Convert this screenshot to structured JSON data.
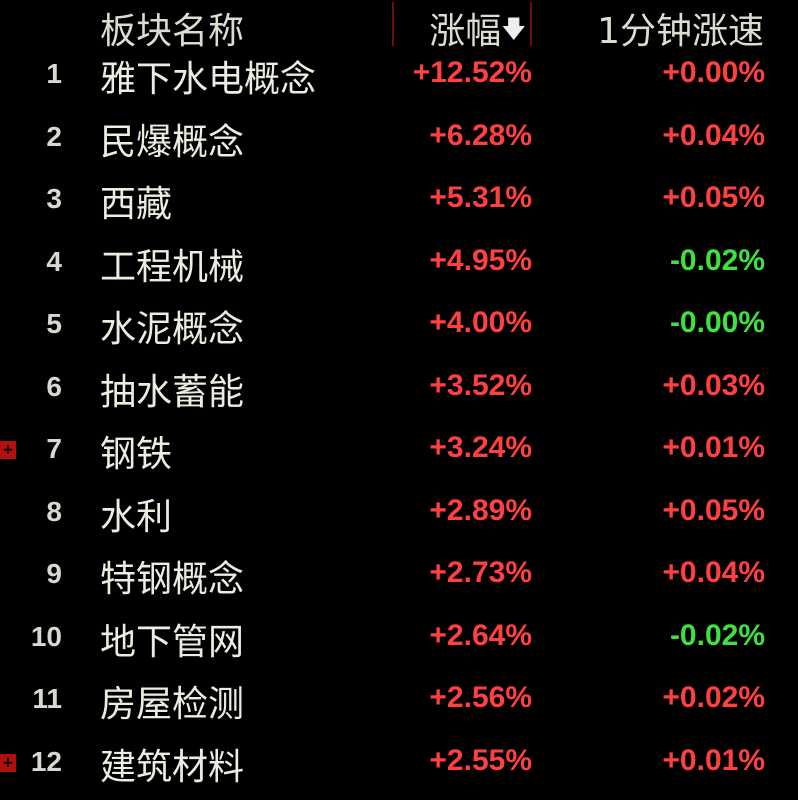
{
  "header": {
    "name": "板块名称",
    "change": "涨幅",
    "sort_icon": "arrow-down-icon",
    "speed": "1分钟涨速"
  },
  "colors": {
    "up": "#ff4040",
    "down": "#40e040",
    "background": "#000000"
  },
  "rows": [
    {
      "rank": "1",
      "name": "雅下水电概念",
      "change": "+12.52%",
      "speed": "+0.00%",
      "speed_dir": "up",
      "mark": false
    },
    {
      "rank": "2",
      "name": "民爆概念",
      "change": "+6.28%",
      "speed": "+0.04%",
      "speed_dir": "up",
      "mark": false
    },
    {
      "rank": "3",
      "name": "西藏",
      "change": "+5.31%",
      "speed": "+0.05%",
      "speed_dir": "up",
      "mark": false
    },
    {
      "rank": "4",
      "name": "工程机械",
      "change": "+4.95%",
      "speed": "-0.02%",
      "speed_dir": "down",
      "mark": false
    },
    {
      "rank": "5",
      "name": "水泥概念",
      "change": "+4.00%",
      "speed": "-0.00%",
      "speed_dir": "down",
      "mark": false
    },
    {
      "rank": "6",
      "name": "抽水蓄能",
      "change": "+3.52%",
      "speed": "+0.03%",
      "speed_dir": "up",
      "mark": false
    },
    {
      "rank": "7",
      "name": "钢铁",
      "change": "+3.24%",
      "speed": "+0.01%",
      "speed_dir": "up",
      "mark": true
    },
    {
      "rank": "8",
      "name": "水利",
      "change": "+2.89%",
      "speed": "+0.05%",
      "speed_dir": "up",
      "mark": false
    },
    {
      "rank": "9",
      "name": "特钢概念",
      "change": "+2.73%",
      "speed": "+0.04%",
      "speed_dir": "up",
      "mark": false
    },
    {
      "rank": "10",
      "name": "地下管网",
      "change": "+2.64%",
      "speed": "-0.02%",
      "speed_dir": "down",
      "mark": false
    },
    {
      "rank": "11",
      "name": "房屋检测",
      "change": "+2.56%",
      "speed": "+0.02%",
      "speed_dir": "up",
      "mark": false
    },
    {
      "rank": "12",
      "name": "建筑材料",
      "change": "+2.55%",
      "speed": "+0.01%",
      "speed_dir": "up",
      "mark": true
    }
  ]
}
